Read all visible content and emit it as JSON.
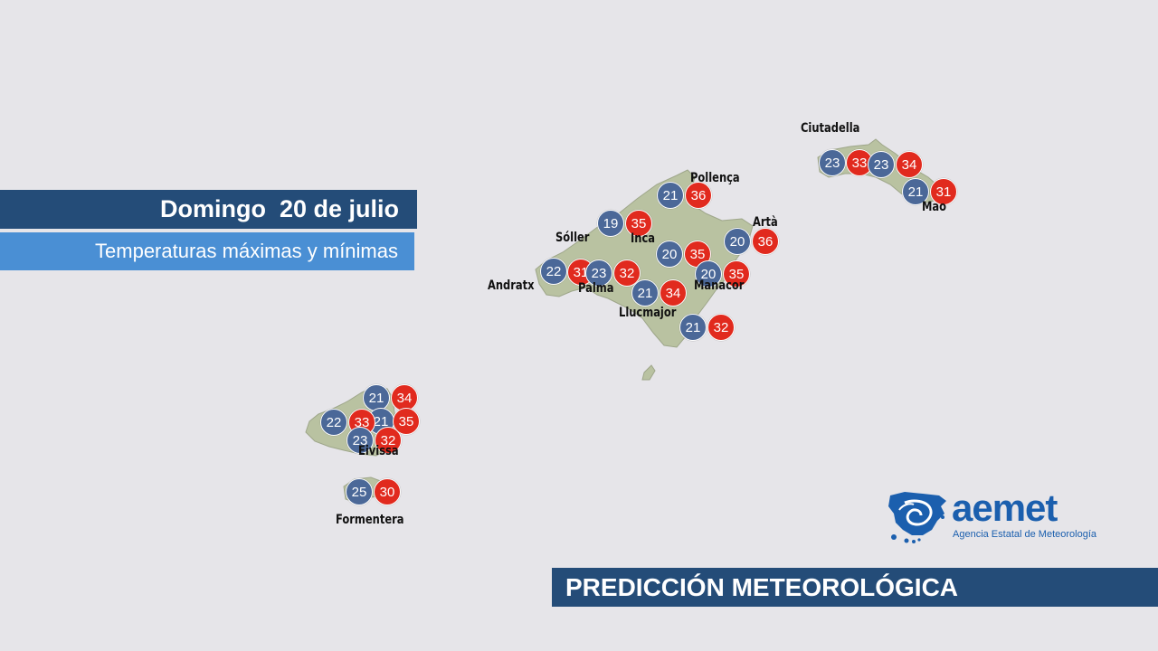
{
  "header": {
    "date": "Domingo  20 de julio",
    "subtitle": "Temperaturas máximas y mínimas"
  },
  "footer": {
    "title": "PREDICCIÓN METEOROLÓGICA"
  },
  "logo": {
    "name": "aemet",
    "subtitle": "Agencia Estatal de Meteorología",
    "icon": "aemet-spain-logo-icon"
  },
  "colors": {
    "background": "#e6e5e9",
    "land": "#b9c2a1",
    "min_temp": "#4b6898",
    "max_temp": "#e12a1e",
    "banner_dark": "#244c78",
    "banner_light": "#4a8fd4",
    "logo_blue": "#1b5fae"
  },
  "places": {
    "ciutadella": "Ciutadella",
    "mao": "Mao",
    "pollenca": "Pollença",
    "arta": "Artà",
    "soller": "Sóller",
    "inca": "Inca",
    "andratx": "Andratx",
    "palma": "Palma",
    "manacor": "Manacor",
    "llucmajor": "Llucmajor",
    "eivissa": "Eivissa",
    "formentera": "Formentera"
  },
  "temps": {
    "ciutadella_min": "23",
    "ciutadella_max": "33",
    "menorca_center_min": "23",
    "menorca_center_max": "34",
    "mao_min": "21",
    "mao_max": "31",
    "pollenca_min": "21",
    "pollenca_max": "36",
    "inca_min": "19",
    "inca_max": "35",
    "arta_min": "20",
    "arta_max": "36",
    "center_min": "20",
    "center_max": "35",
    "manacor_min": "20",
    "manacor_max": "35",
    "andratx_min": "22",
    "andratx_max": "31",
    "palma_min": "23",
    "palma_max": "32",
    "llucmajor_min": "21",
    "llucmajor_max": "34",
    "south_min": "21",
    "south_max": "32",
    "ibiza_north_min": "21",
    "ibiza_north_max": "34",
    "ibiza_west_min": "22",
    "ibiza_west_max": "33",
    "ibiza_east_min": "21",
    "ibiza_east_max": "35",
    "eivissa_min": "23",
    "eivissa_max": "32",
    "formentera_min": "25",
    "formentera_max": "30"
  }
}
